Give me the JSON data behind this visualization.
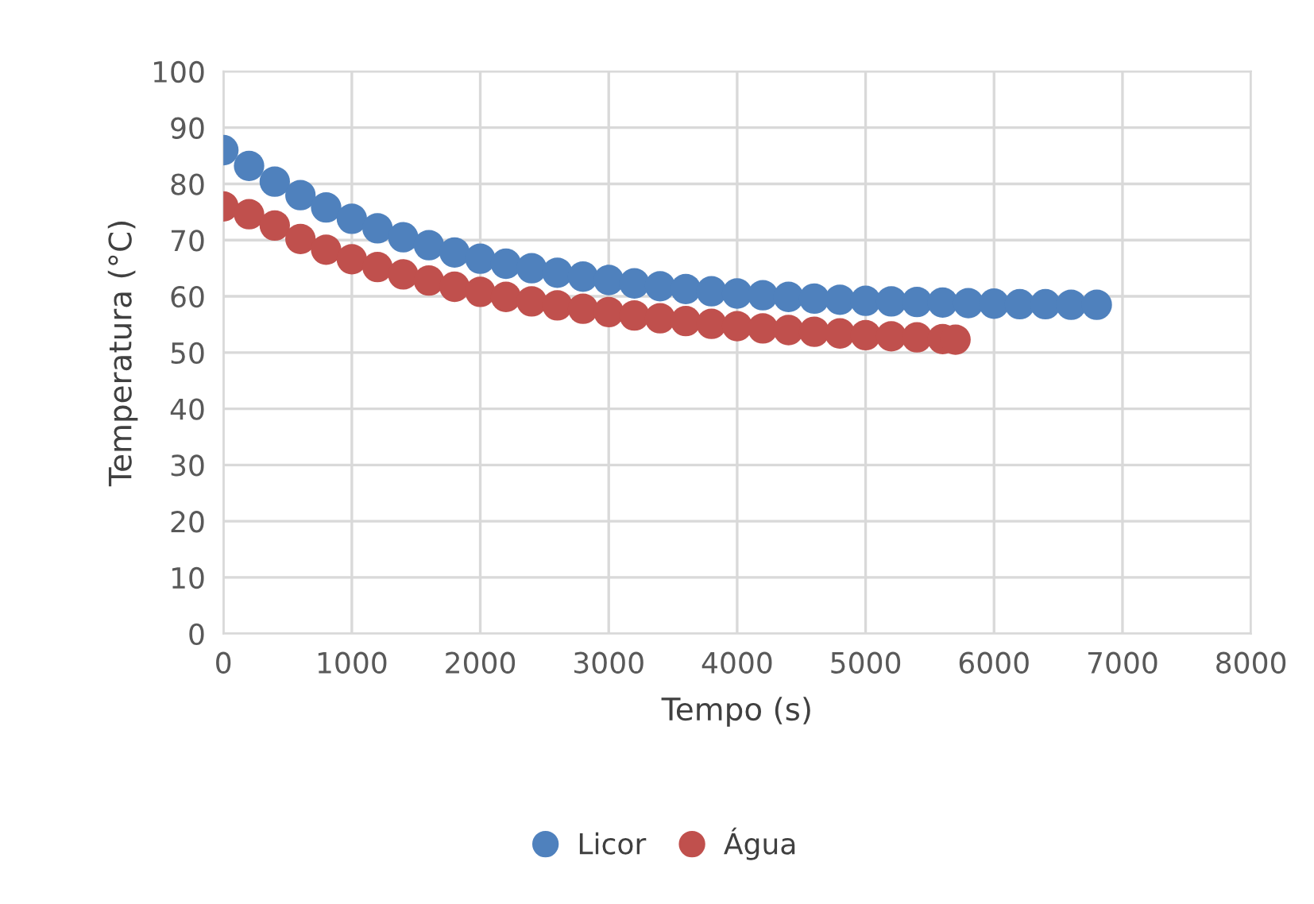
{
  "chart_data": {
    "type": "scatter",
    "xlabel": "Tempo (s)",
    "ylabel": "Temperatura (°C)",
    "xlim": [
      0,
      8000
    ],
    "xticks": [
      0,
      1000,
      2000,
      3000,
      4000,
      5000,
      6000,
      7000,
      8000
    ],
    "ylim": [
      0,
      100
    ],
    "yticks": [
      0,
      10,
      20,
      30,
      40,
      50,
      60,
      70,
      80,
      90,
      100
    ],
    "grid": true,
    "legend": "bottom",
    "marker": "circle",
    "series": [
      {
        "name": "Licor",
        "color": "#4f81bd",
        "x": [
          0,
          200,
          400,
          600,
          800,
          1000,
          1200,
          1400,
          1600,
          1800,
          2000,
          2200,
          2400,
          2600,
          2800,
          3000,
          3200,
          3400,
          3600,
          3800,
          4000,
          4200,
          4400,
          4600,
          4800,
          5000,
          5200,
          5400,
          5600,
          5800,
          6000,
          6200,
          6400,
          6600,
          6800
        ],
        "values": [
          86,
          83.2,
          80.4,
          78,
          75.8,
          73.8,
          72.1,
          70.5,
          69.1,
          67.8,
          66.7,
          65.8,
          65,
          64.2,
          63.5,
          62.9,
          62.3,
          61.8,
          61.3,
          60.9,
          60.5,
          60.2,
          59.9,
          59.6,
          59.4,
          59.2,
          59.1,
          59,
          58.9,
          58.8,
          58.7,
          58.6,
          58.6,
          58.5,
          58.5
        ]
      },
      {
        "name": "Água",
        "color": "#c0504d",
        "x": [
          0,
          200,
          400,
          600,
          800,
          1000,
          1200,
          1400,
          1600,
          1800,
          2000,
          2200,
          2400,
          2600,
          2800,
          3000,
          3200,
          3400,
          3600,
          3800,
          4000,
          4200,
          4400,
          4600,
          4800,
          5000,
          5200,
          5400,
          5600,
          5700
        ],
        "values": [
          76,
          74.6,
          72.6,
          70.2,
          68.3,
          66.6,
          65.2,
          63.9,
          62.8,
          61.7,
          60.8,
          59.9,
          59.1,
          58.4,
          57.8,
          57.2,
          56.6,
          56.1,
          55.6,
          55.1,
          54.7,
          54.3,
          54,
          53.7,
          53.4,
          53.1,
          52.9,
          52.7,
          52.4,
          52.3
        ]
      }
    ]
  }
}
